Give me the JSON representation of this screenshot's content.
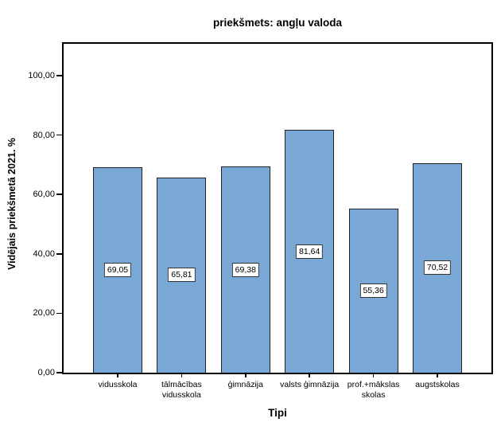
{
  "title": "priekšmets: angļu valoda",
  "y_axis": {
    "label": "Vidējais priekšmetā 2021. %",
    "ticks": [
      "0,00",
      "20,00",
      "40,00",
      "60,00",
      "80,00",
      "100,00"
    ],
    "tick_values": [
      0,
      20,
      40,
      60,
      80,
      100
    ]
  },
  "x_axis": {
    "label": "Tipi"
  },
  "chart_data": {
    "type": "bar",
    "title": "priekšmets: angļu valoda",
    "xlabel": "Tipi",
    "ylabel": "Vidējais priekšmetā 2021. %",
    "categories": [
      "vidusskola",
      "tālmācības\nvidusskola",
      "ģimnāzija",
      "valsts ģimnāzija",
      "prof.+mākslas\nskolas",
      "augstskolas"
    ],
    "values": [
      69.05,
      65.81,
      69.38,
      81.64,
      55.36,
      70.52
    ],
    "value_labels": [
      "69,05",
      "65,81",
      "69,38",
      "81,64",
      "55,36",
      "70,52"
    ],
    "ylim": [
      0,
      110.7
    ],
    "grid": false,
    "legend": false,
    "bar_color": "#7AA8D6",
    "bar_border_color": "#202020",
    "frame_color": "#000000",
    "value_label_bg": "#ffffff",
    "value_label_border": "#333333"
  }
}
